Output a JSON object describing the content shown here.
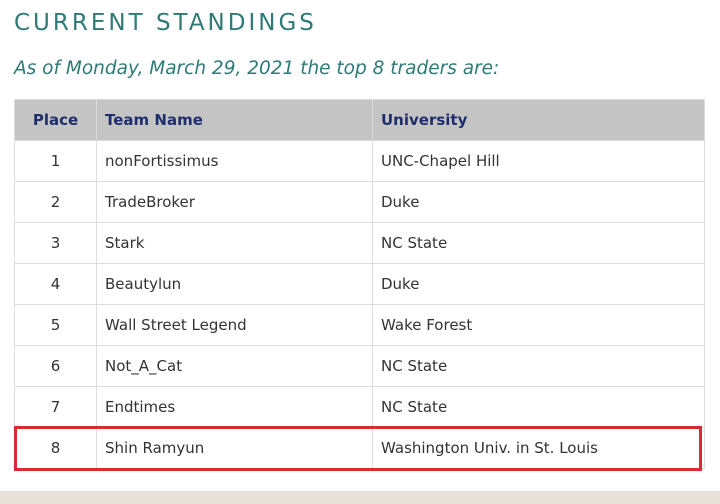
{
  "page": {
    "title": "CURRENT STANDINGS",
    "subtitle": "As of Monday, March 29, 2021 the top 8 traders are:"
  },
  "standings": {
    "columns": [
      "Place",
      "Team Name",
      "University"
    ],
    "rows": [
      {
        "place": "1",
        "team": "nonFortissimus",
        "university": "UNC-Chapel Hill"
      },
      {
        "place": "2",
        "team": "TradeBroker",
        "university": "Duke"
      },
      {
        "place": "3",
        "team": "Stark",
        "university": "NC State"
      },
      {
        "place": "4",
        "team": "Beautylun",
        "university": "Duke"
      },
      {
        "place": "5",
        "team": "Wall Street Legend",
        "university": "Wake Forest"
      },
      {
        "place": "6",
        "team": "Not_A_Cat",
        "university": "NC State"
      },
      {
        "place": "7",
        "team": "Endtimes",
        "university": "NC State"
      },
      {
        "place": "8",
        "team": "Shin Ramyun",
        "university": "Washington Univ. in St. Louis"
      }
    ],
    "highlighted_place": "8"
  },
  "colors": {
    "accent_teal": "#2f7a76",
    "header_bg": "#c4c4c4",
    "header_text": "#1f2f6b",
    "highlight_red": "#d72c35",
    "footer_band": "#e8e1da"
  }
}
